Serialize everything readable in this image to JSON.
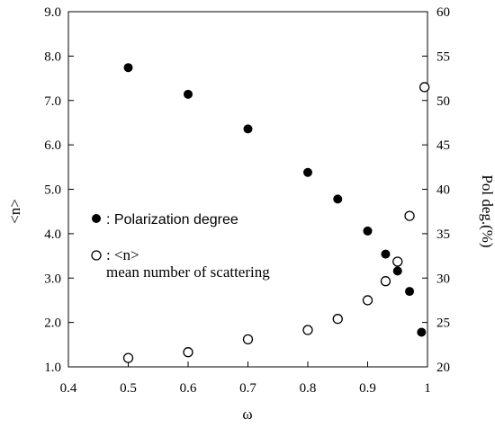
{
  "chart_data": {
    "type": "scatter",
    "x_axis": {
      "label": "ω",
      "range": [
        0.4,
        1.0
      ],
      "ticks": [
        "0.4",
        "0.5",
        "0.6",
        "0.7",
        "0.8",
        "0.9",
        "1"
      ]
    },
    "y_left": {
      "label": "<n>",
      "range": [
        1.0,
        9.0
      ],
      "ticks": [
        "1.0",
        "2.0",
        "3.0",
        "4.0",
        "5.0",
        "6.0",
        "7.0",
        "8.0",
        "9.0"
      ]
    },
    "y_right": {
      "label": "Pol deg.(%)",
      "range": [
        20,
        60
      ],
      "ticks": [
        "20",
        "25",
        "30",
        "35",
        "40",
        "45",
        "50",
        "55",
        "60"
      ]
    },
    "grid": false,
    "legend_placement": "middle-left",
    "series": [
      {
        "name": "Polarization degree",
        "legend_label": ": Polarization degree",
        "marker": "filled-circle",
        "axis": "right",
        "x": [
          0.5,
          0.6,
          0.7,
          0.8,
          0.85,
          0.9,
          0.93,
          0.95,
          0.97,
          0.99
        ],
        "y": [
          53.7,
          50.7,
          46.8,
          41.9,
          38.9,
          35.3,
          32.7,
          30.8,
          28.5,
          23.9
        ]
      },
      {
        "name": "<n>",
        "legend_label": ": <n>",
        "legend_sublabel": "mean number of scattering",
        "marker": "open-circle",
        "axis": "left",
        "x": [
          0.5,
          0.6,
          0.7,
          0.8,
          0.85,
          0.9,
          0.93,
          0.95,
          0.97,
          0.995
        ],
        "y": [
          1.2,
          1.33,
          1.62,
          1.83,
          2.08,
          2.5,
          2.93,
          3.37,
          4.4,
          7.3
        ]
      }
    ]
  }
}
